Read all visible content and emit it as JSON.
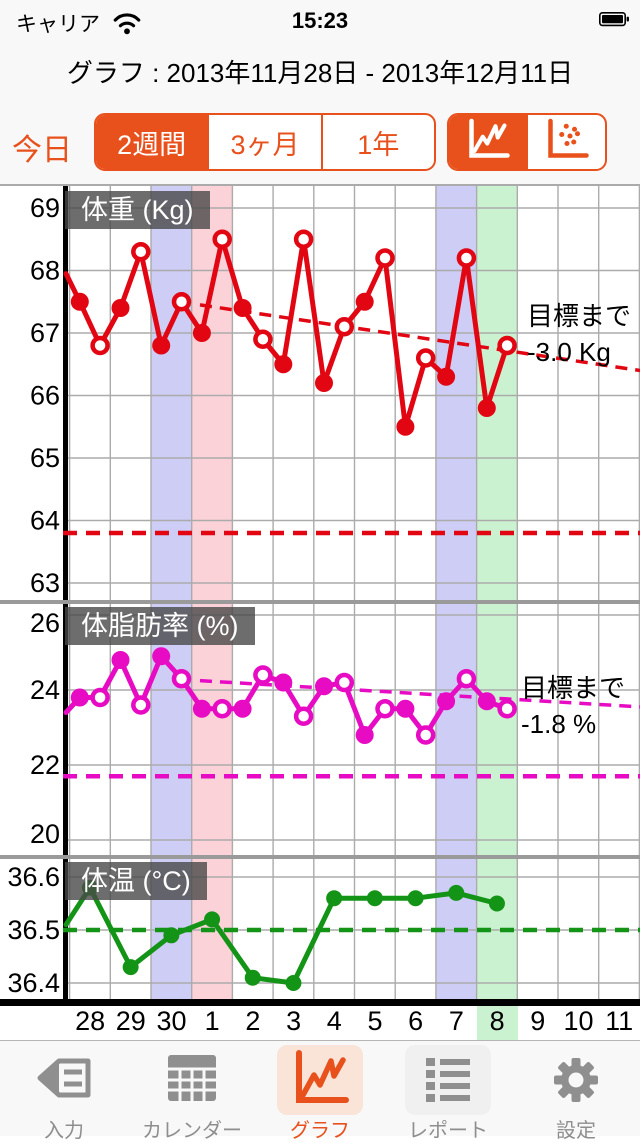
{
  "status_bar": {
    "carrier": "キャリア",
    "time": "15:23",
    "battery": "full",
    "icons": [
      "wifi-icon",
      "battery-icon"
    ]
  },
  "header": {
    "title": "グラフ : 2013年11月28日 - 2013年12月11日"
  },
  "toolbar": {
    "today_label": "今日",
    "range_options": [
      {
        "label": "2週間",
        "selected": true
      },
      {
        "label": "3ヶ月",
        "selected": false
      },
      {
        "label": "1年",
        "selected": false
      }
    ],
    "chart_type_options": [
      {
        "icon": "line-chart-icon",
        "selected": true
      },
      {
        "icon": "scatter-chart-icon",
        "selected": false
      }
    ]
  },
  "colors": {
    "accent": "#E8511C",
    "weight_line": "#E20613",
    "body_fat_line": "#E80BC4",
    "temperature_line": "#149417",
    "saturday_band": "#CDCDF5",
    "sunday_band": "#FAD2D8",
    "today_band": "#CBF2D0",
    "grid": "#ABABAB",
    "separator": "#9A9A9A",
    "title_box": "rgba(72,72,72,0.8)"
  },
  "x_axis": {
    "labels": [
      "28",
      "29",
      "30",
      "1",
      "2",
      "3",
      "4",
      "5",
      "6",
      "7",
      "8",
      "9",
      "10",
      "11"
    ],
    "saturday_days": [
      "30",
      "7"
    ],
    "sunday_days": [
      "1"
    ],
    "today_day": "8"
  },
  "chart_data": [
    {
      "type": "line",
      "title": "体重 (Kg)",
      "color": "#E20613",
      "categories": [
        "28",
        "29",
        "30",
        "1",
        "2",
        "3",
        "4",
        "5",
        "6",
        "7",
        "8"
      ],
      "series": [
        {
          "name": "measurement-1",
          "marker": "filled",
          "values": [
            67.5,
            67.4,
            66.8,
            67.0,
            67.4,
            66.5,
            66.2,
            67.5,
            65.5,
            66.3,
            65.8
          ]
        },
        {
          "name": "measurement-2",
          "marker": "open",
          "values": [
            66.8,
            68.3,
            67.5,
            68.5,
            66.9,
            68.5,
            67.1,
            68.2,
            66.6,
            68.2,
            66.8
          ]
        }
      ],
      "lead_in_value": 67.95,
      "yticks": [
        69,
        68,
        67,
        66,
        65,
        64,
        63
      ],
      "ylim": [
        62.6,
        69.4
      ],
      "goal_value": 63.8,
      "goal_label": [
        "目標まで",
        "-3.0 Kg"
      ],
      "trend_line": {
        "from_value": 67.45,
        "to_value": 66.4
      },
      "grid": true
    },
    {
      "type": "line",
      "title": "体脂肪率 (%)",
      "color": "#E80BC4",
      "categories": [
        "28",
        "29",
        "30",
        "1",
        "2",
        "3",
        "4",
        "5",
        "6",
        "7",
        "8"
      ],
      "series": [
        {
          "name": "measurement-1",
          "marker": "filled",
          "values": [
            23.8,
            24.8,
            24.9,
            23.5,
            23.5,
            24.2,
            24.1,
            22.8,
            23.5,
            23.7,
            23.7
          ]
        },
        {
          "name": "measurement-2",
          "marker": "open",
          "values": [
            23.8,
            23.6,
            24.3,
            23.5,
            24.4,
            23.3,
            24.2,
            23.5,
            22.8,
            24.3,
            23.5
          ]
        }
      ],
      "lead_in_value": 23.4,
      "yticks": [
        26,
        24,
        22,
        20
      ],
      "ylim": [
        19.6,
        26.3
      ],
      "goal_value": 21.7,
      "goal_label": [
        "目標まで",
        "-1.8 %"
      ],
      "trend_line": {
        "from_value": 24.25,
        "to_value": 23.55
      },
      "grid": true
    },
    {
      "type": "line",
      "title": "体温 (°C)",
      "color": "#149417",
      "categories": [
        "28",
        "29",
        "30",
        "1",
        "2",
        "3",
        "4",
        "5",
        "6",
        "7",
        "8"
      ],
      "series": [
        {
          "name": "measurement-1",
          "marker": "filled",
          "values": [
            36.58,
            36.43,
            36.49,
            36.52,
            36.41,
            36.4,
            36.56,
            36.56,
            36.56,
            36.57,
            36.55
          ]
        }
      ],
      "lead_in_value": 36.51,
      "yticks": [
        36.6,
        36.5,
        36.4
      ],
      "ylim": [
        36.37,
        36.63
      ],
      "goal_value": 36.5,
      "goal_label": [],
      "trend_line": null,
      "grid": true
    }
  ],
  "tabbar": {
    "tabs": [
      {
        "label": "入力",
        "icon": "pencil-icon",
        "selected": false
      },
      {
        "label": "カレンダー",
        "icon": "calendar-icon",
        "selected": false
      },
      {
        "label": "グラフ",
        "icon": "graph-icon",
        "selected": true
      },
      {
        "label": "レポート",
        "icon": "report-icon",
        "selected": false
      },
      {
        "label": "設定",
        "icon": "gear-icon",
        "selected": false
      }
    ]
  }
}
